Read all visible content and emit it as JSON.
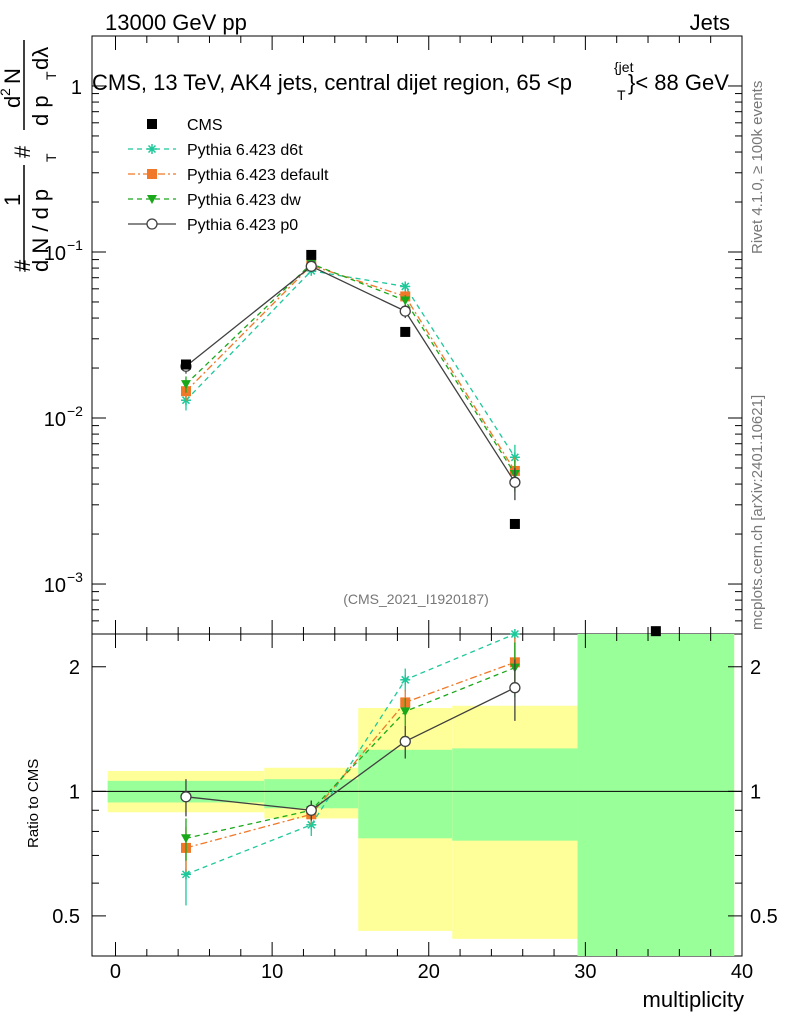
{
  "header": {
    "left": "13000 GeV pp",
    "right": "Jets"
  },
  "plot_title": "CMS, 13 TeV, AK4 jets, central dijet region, 65 <p",
  "plot_title_sup": "{jet",
  "plot_title_sub": "T",
  "plot_title_end": "}< 88 GeV",
  "ylabel_top": "# 1 / # dN/dp_T # d²N/dp_T dλ",
  "ylabel_top_parts": {
    "hash": "#",
    "one": "1",
    "frac_den": "d N / d p",
    "frac_num": "d",
    "num2": "N",
    "sup2": "2",
    "den2": "d p",
    "lambda": "dλ",
    "sub_T": "T"
  },
  "ylabel_bottom": "Ratio to CMS",
  "xlabel": "multiplicity",
  "analysis_id": "(CMS_2021_I1920187)",
  "right_text_1": "Rivet 4.1.0, ≥ 100k events",
  "right_text_2": "mcplots.cern.ch [arXiv:2401.10621]",
  "legend": [
    {
      "name": "CMS",
      "marker": "square",
      "color": "#000000",
      "dash": "none"
    },
    {
      "name": "Pythia 6.423 d6t",
      "marker": "star",
      "color": "#1ec89a",
      "dash": "dash"
    },
    {
      "name": "Pythia 6.423 default",
      "marker": "square",
      "color": "#f07828",
      "dash": "dashdot"
    },
    {
      "name": "Pythia 6.423 dw",
      "marker": "triangle-down",
      "color": "#19a819",
      "dash": "dash"
    },
    {
      "name": "Pythia 6.423 p0",
      "marker": "circle-open",
      "color": "#404040",
      "dash": "solid"
    }
  ],
  "chart_data": {
    "type": "line",
    "x_label": "multiplicity",
    "xlim": [
      -1.5,
      40
    ],
    "x_ticks": [
      "0",
      "10",
      "20",
      "30",
      "40"
    ],
    "main": {
      "yscale": "log",
      "ylim": [
        0.0005,
        2
      ],
      "y_ticks": [
        {
          "value": 1,
          "label": "1"
        },
        {
          "value": 0.1,
          "label": "10",
          "exp": "−1"
        },
        {
          "value": 0.01,
          "label": "10",
          "exp": "−2"
        },
        {
          "value": 0.001,
          "label": "10",
          "exp": "−3"
        }
      ],
      "cms": [
        {
          "x": 4.5,
          "y": 0.021
        },
        {
          "x": 12.5,
          "y": 0.096
        },
        {
          "x": 18.5,
          "y": 0.033
        },
        {
          "x": 25.5,
          "y": 0.0023
        },
        {
          "x": 34.5,
          "y": 0.00052
        }
      ],
      "series": [
        {
          "name": "Pythia 6.423 d6t",
          "x": [
            4.5,
            12.5,
            18.5,
            25.5
          ],
          "y": [
            0.0128,
            0.077,
            0.062,
            0.0058
          ],
          "err": [
            0.0017,
            0.004,
            0.004,
            0.0011
          ]
        },
        {
          "name": "Pythia 6.423 default",
          "x": [
            4.5,
            12.5,
            18.5,
            25.5
          ],
          "y": [
            0.0145,
            0.083,
            0.054,
            0.0048
          ],
          "err": [
            0.0018,
            0.004,
            0.004,
            0.001
          ]
        },
        {
          "name": "Pythia 6.423 dw",
          "x": [
            4.5,
            12.5,
            18.5,
            25.5
          ],
          "y": [
            0.016,
            0.085,
            0.051,
            0.0046
          ],
          "err": [
            0.0018,
            0.004,
            0.004,
            0.001
          ]
        },
        {
          "name": "Pythia 6.423 p0",
          "x": [
            4.5,
            12.5,
            18.5,
            25.5
          ],
          "y": [
            0.0205,
            0.082,
            0.044,
            0.0041
          ],
          "err": [
            0.002,
            0.004,
            0.004,
            0.0009
          ]
        }
      ]
    },
    "ratio": {
      "yscale": "log",
      "ylim": [
        0.4,
        2.4
      ],
      "y_ticks": [
        {
          "value": 0.5,
          "label": "0.5"
        },
        {
          "value": 1,
          "label": "1"
        },
        {
          "value": 2,
          "label": "2"
        }
      ],
      "bands": [
        {
          "x0": -0.5,
          "x1": 9.5,
          "yellow": [
            0.89,
            1.12
          ],
          "green": [
            0.94,
            1.06
          ]
        },
        {
          "x0": 9.5,
          "x1": 15.5,
          "yellow": [
            0.86,
            1.14
          ],
          "green": [
            0.91,
            1.07
          ]
        },
        {
          "x0": 15.5,
          "x1": 21.5,
          "yellow": [
            0.46,
            1.59
          ],
          "green": [
            0.77,
            1.26
          ]
        },
        {
          "x0": 21.5,
          "x1": 29.5,
          "yellow": [
            0.44,
            1.61
          ],
          "green": [
            0.76,
            1.27
          ]
        },
        {
          "x0": 29.5,
          "x1": 39.5,
          "yellow": [
            0.4,
            2.4
          ],
          "green": [
            0.4,
            2.4
          ]
        }
      ],
      "series": [
        {
          "name": "Pythia 6.423 d6t",
          "x": [
            4.5,
            12.5,
            18.5,
            25.5
          ],
          "y": [
            0.63,
            0.83,
            1.86,
            2.4
          ],
          "err": [
            0.1,
            0.05,
            0.12,
            0.3
          ]
        },
        {
          "name": "Pythia 6.423 default",
          "x": [
            4.5,
            12.5,
            18.5,
            25.5
          ],
          "y": [
            0.73,
            0.88,
            1.64,
            2.05
          ],
          "err": [
            0.09,
            0.05,
            0.12,
            0.3
          ]
        },
        {
          "name": "Pythia 6.423 dw",
          "x": [
            4.5,
            12.5,
            18.5,
            25.5
          ],
          "y": [
            0.77,
            0.9,
            1.56,
            1.99
          ],
          "err": [
            0.09,
            0.05,
            0.12,
            0.3
          ]
        },
        {
          "name": "Pythia 6.423 p0",
          "x": [
            4.5,
            12.5,
            18.5,
            25.5
          ],
          "y": [
            0.97,
            0.9,
            1.32,
            1.78
          ],
          "err": [
            0.1,
            0.05,
            0.12,
            0.3
          ]
        }
      ]
    }
  }
}
